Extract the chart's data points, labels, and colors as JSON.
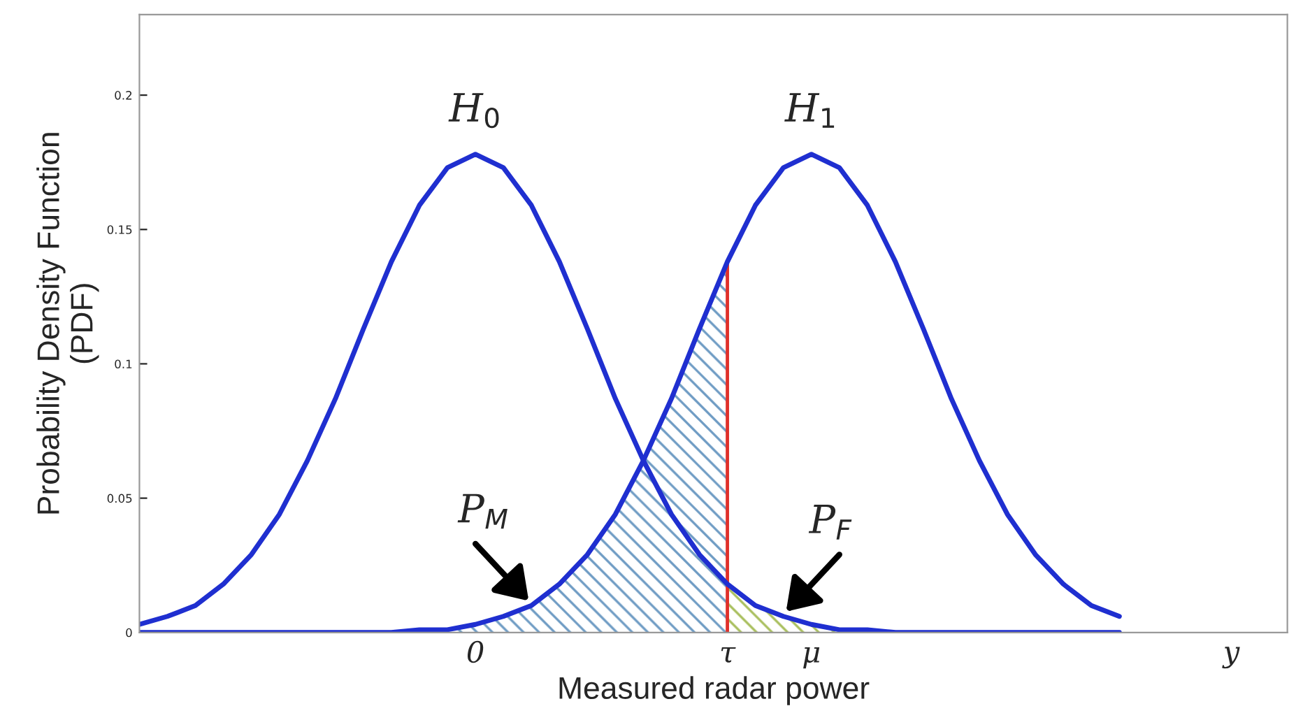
{
  "chart_data": {
    "type": "line",
    "xlabel": "Measured radar power",
    "ylabel": "Probability Density Function\n(PDF)",
    "categories": [
      null,
      null,
      null,
      null,
      null,
      null,
      null,
      null,
      null,
      null,
      null,
      null,
      "0",
      null,
      null,
      null,
      null,
      null,
      null,
      null,
      null,
      "τ",
      null,
      null,
      "μ",
      null,
      null,
      null,
      null,
      null,
      null,
      null,
      null,
      null,
      null,
      null,
      null,
      null,
      null,
      "y",
      null,
      null
    ],
    "ylim": [
      0,
      0.23
    ],
    "yticks": [
      0,
      0.05,
      0.1,
      0.15,
      0.2
    ],
    "grid": false,
    "legend": false,
    "marker": "none",
    "series": [
      {
        "color": "#1f2fd0",
        "values": [
          0.003,
          0.006,
          0.01,
          0.018,
          0.029,
          0.044,
          0.064,
          0.087,
          0.113,
          0.138,
          0.159,
          0.173,
          0.178,
          0.173,
          0.159,
          0.138,
          0.113,
          0.087,
          0.064,
          0.044,
          0.029,
          0.018,
          0.01,
          0.006,
          0.003,
          0.001,
          0.001,
          0,
          0,
          0,
          0,
          0,
          0,
          0,
          0,
          0,
          null,
          null,
          null,
          null,
          null,
          null
        ]
      },
      {
        "color": "#1f2fd0",
        "values": [
          0,
          0,
          0,
          0,
          0,
          0,
          0,
          0,
          0,
          0,
          0.001,
          0.001,
          0.003,
          0.006,
          0.01,
          0.018,
          0.029,
          0.044,
          0.064,
          0.087,
          0.113,
          0.138,
          0.159,
          0.173,
          0.178,
          0.173,
          0.159,
          0.138,
          0.113,
          0.087,
          0.064,
          0.044,
          0.029,
          0.018,
          0.01,
          0.006,
          null,
          null,
          null,
          null,
          null,
          null
        ]
      },
      {
        "type": "area",
        "color": "#6f9cc4",
        "values": [
          null,
          null,
          null,
          null,
          null,
          null,
          null,
          null,
          null,
          null,
          0.001,
          0.001,
          0.003,
          0.006,
          0.01,
          0.018,
          0.029,
          0.044,
          0.064,
          0.087,
          0.113,
          0.138,
          null,
          null,
          null,
          null,
          null,
          null,
          null,
          null,
          null,
          null,
          null,
          null,
          null,
          null,
          null,
          null,
          null,
          null,
          null,
          null
        ]
      },
      {
        "type": "area",
        "color": "#a9bf5e",
        "values": [
          null,
          null,
          null,
          null,
          null,
          null,
          null,
          null,
          null,
          null,
          null,
          null,
          null,
          null,
          null,
          null,
          null,
          null,
          null,
          null,
          null,
          0.018,
          0.01,
          0.006,
          0.003,
          0.001,
          0.001,
          null,
          null,
          null,
          null,
          null,
          null,
          null,
          null,
          null,
          null,
          null,
          null,
          null,
          null,
          null
        ]
      },
      {
        "type": "bar",
        "color": "#e0302a",
        "values": [
          null,
          null,
          null,
          null,
          null,
          null,
          null,
          null,
          null,
          null,
          null,
          null,
          null,
          null,
          null,
          null,
          null,
          null,
          null,
          null,
          null,
          0.138,
          null,
          null,
          null,
          null,
          null,
          null,
          null,
          null,
          null,
          null,
          null,
          null,
          null,
          null,
          null,
          null,
          null,
          null,
          null,
          null
        ]
      }
    ],
    "annotations": [
      "H$_{0}$",
      "H$_{1}$",
      "P$_{M}$",
      "P$_{F}$"
    ]
  }
}
